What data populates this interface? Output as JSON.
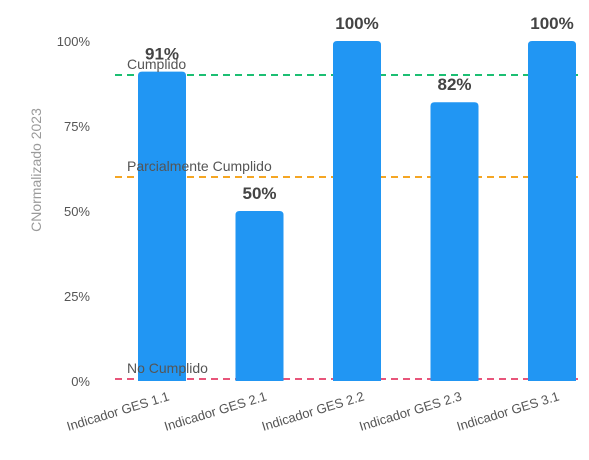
{
  "chart_data": {
    "type": "bar",
    "ylabel": "CNormalizado 2023",
    "categories": [
      "Indicador GES 1.1",
      "Indicador GES 2.1",
      "Indicador GES 2.2",
      "Indicador GES 2.3",
      "Indicador GES 3.1"
    ],
    "values": [
      91,
      50,
      100,
      82,
      100
    ],
    "data_labels": [
      "91%",
      "50%",
      "100%",
      "82%",
      "100%"
    ],
    "ylim": [
      0,
      100
    ],
    "yticks": [
      0,
      25,
      50,
      75,
      100
    ],
    "ytick_labels": [
      "0%",
      "25%",
      "50%",
      "75%",
      "100%"
    ],
    "grid": false,
    "bar_color": "#2196f3",
    "reference_lines": [
      {
        "label": "Cumplido",
        "value": 90,
        "color": "#1cbf73"
      },
      {
        "label": "Parcialmente Cumplido",
        "value": 60,
        "color": "#f5a623"
      },
      {
        "label": "No Cumplido",
        "value": 0,
        "color": "#e8557a"
      }
    ]
  }
}
